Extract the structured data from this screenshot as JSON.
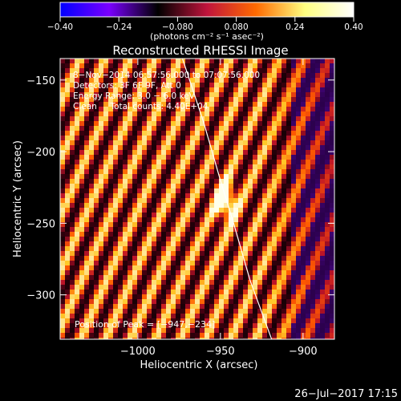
{
  "colorbar": {
    "ticks": [
      "−0.40",
      "−0.24",
      "−0.080",
      "0.080",
      "0.24",
      "0.40"
    ],
    "tick_values": [
      -0.4,
      -0.24,
      -0.08,
      0.08,
      0.24,
      0.4
    ],
    "range": [
      -0.4,
      0.4
    ],
    "unit_label": "(photons cm⁻² s⁻¹ asec⁻²)",
    "colors": [
      "#0000ff",
      "#7a00ff",
      "#000000",
      "#c0143c",
      "#ff6a00",
      "#ffff80",
      "#ffffff"
    ]
  },
  "plot_title": "Reconstructed RHESSI Image",
  "info_lines": [
    "8−Nov−2014 06:57:56.000 to 07:07:56.000",
    "Detectors: 3F 6F 9F, Att 0",
    "Energy Range: 3.0 − 6.0 keV",
    "Clean     Total counts: 4.40E+04"
  ],
  "peak_text": "Position of Peak = [−947,−234]",
  "footer_date": "26−Jul−2017 17:15",
  "chart_data": {
    "type": "heatmap",
    "title": "Reconstructed RHESSI Image",
    "xlabel": "Heliocentric X (arcsec)",
    "ylabel": "Heliocentric Y (arcsec)",
    "xlim": [
      -1047,
      -881
    ],
    "ylim": [
      -331,
      -135
    ],
    "xticks": [
      -1000,
      -950,
      -900
    ],
    "xtick_labels": [
      "−1000",
      "−950",
      "−900"
    ],
    "yticks": [
      -150,
      -200,
      -250,
      -300
    ],
    "ytick_labels": [
      "−150",
      "−200",
      "−250",
      "−300"
    ],
    "value_range": [
      -0.4,
      0.4
    ],
    "peak": {
      "x": -947,
      "y": -234
    },
    "pattern": "diagonal fringes with bright source near peak",
    "limb_curve": [
      [
        -973,
        -135
      ],
      [
        -960,
        -180
      ],
      [
        -950,
        -220
      ],
      [
        -942,
        -250
      ],
      [
        -932,
        -290
      ],
      [
        -919,
        -331
      ]
    ]
  }
}
